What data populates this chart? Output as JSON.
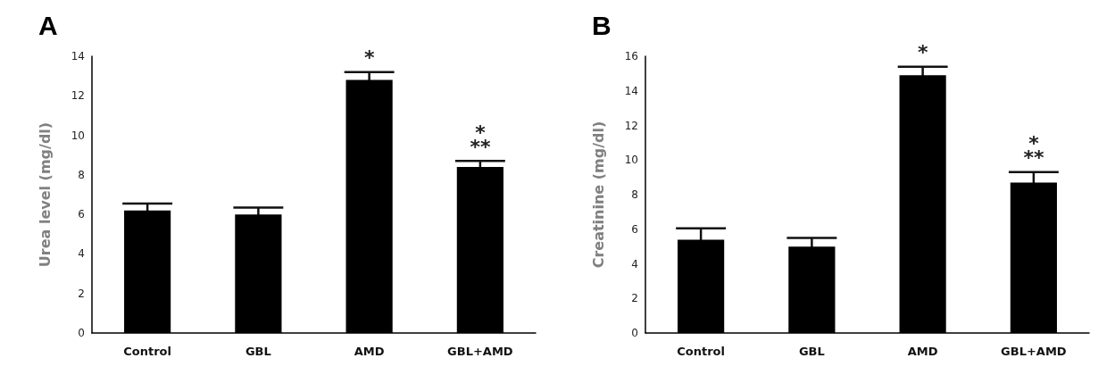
{
  "chart_data": [
    {
      "type": "bar",
      "title": "A",
      "ylabel": "Urea level (mg/dl)",
      "categories": [
        "Control",
        "GBL",
        "AMD",
        "GBL+AMD"
      ],
      "color": "#000000",
      "values": [
        6.2,
        6.0,
        12.8,
        8.4
      ],
      "errors": [
        0.35,
        0.35,
        0.4,
        0.3
      ],
      "ylim": [
        0,
        14
      ],
      "yticks": [
        0,
        2,
        4,
        6,
        8,
        10,
        12,
        14
      ],
      "grid": false,
      "annotations": [
        {
          "text": "*",
          "x": "AMD",
          "y": 12.8
        },
        {
          "text": "**",
          "x": "GBL+AMD",
          "y": 8.4
        },
        {
          "text": "*",
          "x": "GBL+AMD",
          "y": 8.4
        }
      ]
    },
    {
      "type": "bar",
      "title": "B",
      "ylabel": "Creatinine (mg/dl)",
      "categories": [
        "Control",
        "GBL",
        "AMD",
        "GBL+AMD"
      ],
      "color": "#000000",
      "values": [
        5.4,
        5.0,
        14.9,
        8.7
      ],
      "errors": [
        0.65,
        0.5,
        0.5,
        0.6
      ],
      "ylim": [
        0,
        16
      ],
      "yticks": [
        0,
        2,
        4,
        6,
        8,
        10,
        12,
        14,
        16
      ],
      "grid": false,
      "annotations": [
        {
          "text": "*",
          "x": "AMD",
          "y": 14.9
        },
        {
          "text": "**",
          "x": "GBL+AMD",
          "y": 8.7
        },
        {
          "text": "*",
          "x": "GBL+AMD",
          "y": 8.7
        }
      ]
    }
  ]
}
